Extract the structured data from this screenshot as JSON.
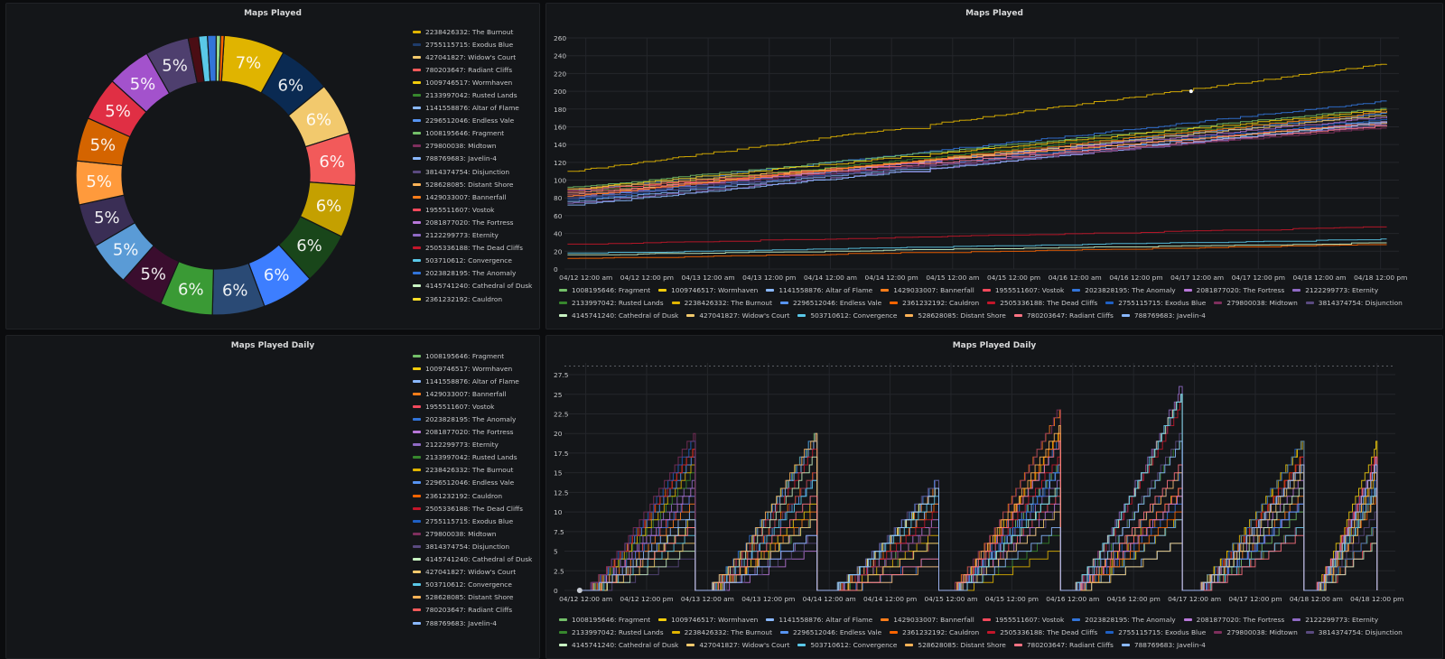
{
  "panels": {
    "maps_played_pie": {
      "title": "Maps Played"
    },
    "maps_played_line": {
      "title": "Maps Played"
    },
    "maps_played_daily_pie": {
      "title": "Maps Played Daily"
    },
    "maps_played_daily_line": {
      "title": "Maps Played Daily"
    }
  },
  "legend_pie1": [
    {
      "label": "2238426332: The Burnout",
      "color": "#e0b400"
    },
    {
      "label": "2755115715: Exodus Blue",
      "color": "#1f3c6b"
    },
    {
      "label": "427041827: Widow's Court",
      "color": "#f2c96d"
    },
    {
      "label": "780203647: Radiant Cliffs",
      "color": "#f25a5a"
    },
    {
      "label": "1009746517: Wormhaven",
      "color": "#f2cc0c"
    },
    {
      "label": "2133997042: Rusted Lands",
      "color": "#37872d"
    },
    {
      "label": "1141558876: Altar of Flame",
      "color": "#8ab8ff"
    },
    {
      "label": "2296512046: Endless Vale",
      "color": "#5794f2"
    },
    {
      "label": "1008195646: Fragment",
      "color": "#73bf69"
    },
    {
      "label": "279800038: Midtown",
      "color": "#7e2f5d"
    },
    {
      "label": "788769683: Javelin-4",
      "color": "#8ab8ff"
    },
    {
      "label": "3814374754: Disjunction",
      "color": "#5a4a80"
    },
    {
      "label": "528628085: Distant Shore",
      "color": "#ffb357"
    },
    {
      "label": "1429033007: Bannerfall",
      "color": "#ff7d1a"
    },
    {
      "label": "1955511607: Vostok",
      "color": "#f2495c"
    },
    {
      "label": "2081877020: The Fortress",
      "color": "#b877d9"
    },
    {
      "label": "2122299773: Eternity",
      "color": "#8f6ac4"
    },
    {
      "label": "2505336188: The Dead Cliffs",
      "color": "#c4162a"
    },
    {
      "label": "503710612: Convergence",
      "color": "#5ac8e8"
    },
    {
      "label": "2023828195: The Anomaly",
      "color": "#3274d9"
    },
    {
      "label": "4145741240: Cathedral of Dusk",
      "color": "#c8f2c2"
    },
    {
      "label": "2361232192: Cauldron",
      "color": "#fade2a"
    }
  ],
  "legend_pie2": [
    {
      "label": "1008195646: Fragment",
      "color": "#73bf69"
    },
    {
      "label": "1009746517: Wormhaven",
      "color": "#f2cc0c"
    },
    {
      "label": "1141558876: Altar of Flame",
      "color": "#8ab8ff"
    },
    {
      "label": "1429033007: Bannerfall",
      "color": "#ff7d1a"
    },
    {
      "label": "1955511607: Vostok",
      "color": "#f2495c"
    },
    {
      "label": "2023828195: The Anomaly",
      "color": "#3274d9"
    },
    {
      "label": "2081877020: The Fortress",
      "color": "#b877d9"
    },
    {
      "label": "2122299773: Eternity",
      "color": "#8f6ac4"
    },
    {
      "label": "2133997042: Rusted Lands",
      "color": "#37872d"
    },
    {
      "label": "2238426332: The Burnout",
      "color": "#e0b400"
    },
    {
      "label": "2296512046: Endless Vale",
      "color": "#5794f2"
    },
    {
      "label": "2361232192: Cauldron",
      "color": "#fa6400"
    },
    {
      "label": "2505336188: The Dead Cliffs",
      "color": "#c4162a"
    },
    {
      "label": "2755115715: Exodus Blue",
      "color": "#1f60c4"
    },
    {
      "label": "279800038: Midtown",
      "color": "#7e2f5d"
    },
    {
      "label": "3814374754: Disjunction",
      "color": "#5a4a80"
    },
    {
      "label": "4145741240: Cathedral of Dusk",
      "color": "#c8f2c2"
    },
    {
      "label": "427041827: Widow's Court",
      "color": "#f2c96d"
    },
    {
      "label": "503710612: Convergence",
      "color": "#5ac8e8"
    },
    {
      "label": "528628085: Distant Shore",
      "color": "#ffb357"
    },
    {
      "label": "780203647: Radiant Cliffs",
      "color": "#f25a5a"
    },
    {
      "label": "788769683: Javelin-4",
      "color": "#8ab8ff"
    }
  ],
  "legend_lines": [
    [
      {
        "label": "1008195646: Fragment",
        "color": "#73bf69"
      },
      {
        "label": "1009746517: Wormhaven",
        "color": "#f2cc0c"
      },
      {
        "label": "1141558876: Altar of Flame",
        "color": "#8ab8ff"
      },
      {
        "label": "1429033007: Bannerfall",
        "color": "#ff7d1a"
      },
      {
        "label": "1955511607: Vostok",
        "color": "#f2495c"
      },
      {
        "label": "2023828195: The Anomaly",
        "color": "#3274d9"
      },
      {
        "label": "2081877020: The Fortress",
        "color": "#b877d9"
      },
      {
        "label": "2122299773: Eternity",
        "color": "#8f6ac4"
      }
    ],
    [
      {
        "label": "2133997042: Rusted Lands",
        "color": "#37872d"
      },
      {
        "label": "2238426332: The Burnout",
        "color": "#e0b400"
      },
      {
        "label": "2296512046: Endless Vale",
        "color": "#5794f2"
      },
      {
        "label": "2361232192: Cauldron",
        "color": "#fa6400"
      },
      {
        "label": "2505336188: The Dead Cliffs",
        "color": "#c4162a"
      },
      {
        "label": "2755115715: Exodus Blue",
        "color": "#1f60c4"
      },
      {
        "label": "279800038: Midtown",
        "color": "#7e2f5d"
      },
      {
        "label": "3814374754: Disjunction",
        "color": "#5a4a80"
      }
    ],
    [
      {
        "label": "4145741240: Cathedral of Dusk",
        "color": "#c8f2c2"
      },
      {
        "label": "427041827: Widow's Court",
        "color": "#f2c96d"
      },
      {
        "label": "503710612: Convergence",
        "color": "#5ac8e8"
      },
      {
        "label": "528628085: Distant Shore",
        "color": "#ffb357"
      },
      {
        "label": "780203647: Radiant Cliffs",
        "color": "#ff7383"
      },
      {
        "label": "788769683: Javelin-4",
        "color": "#8ab8ff"
      }
    ]
  ],
  "chart_data": [
    {
      "type": "pie",
      "title": "Maps Played",
      "donut": true,
      "slices": [
        {
          "label": "2238426332: The Burnout",
          "value": 7,
          "color": "#e0b400"
        },
        {
          "label": "2755115715: Exodus Blue",
          "value": 6,
          "color": "#0a2a52"
        },
        {
          "label": "427041827: Widow's Court",
          "value": 6,
          "color": "#f2c96d"
        },
        {
          "label": "780203647: Radiant Cliffs",
          "value": 6,
          "color": "#f25a5a"
        },
        {
          "label": "1009746517: Wormhaven",
          "value": 6,
          "color": "#c4a000"
        },
        {
          "label": "2133997042: Rusted Lands",
          "value": 6,
          "color": "#19461a"
        },
        {
          "label": "1141558876: Altar of Flame",
          "value": 6,
          "color": "#3d7eff"
        },
        {
          "label": "2296512046: Endless Vale",
          "value": 6,
          "color": "#2a4a75"
        },
        {
          "label": "1008195646: Fragment",
          "value": 6,
          "color": "#3a9a35"
        },
        {
          "label": "279800038: Midtown",
          "value": 5,
          "color": "#3a0d2e"
        },
        {
          "label": "788769683: Javelin-4",
          "value": 5,
          "color": "#5a9bd6"
        },
        {
          "label": "3814374754: Disjunction",
          "value": 5,
          "color": "#3a2e55"
        },
        {
          "label": "528628085: Distant Shore",
          "value": 5,
          "color": "#ff9a3c"
        },
        {
          "label": "1429033007: Bannerfall",
          "value": 5,
          "color": "#d46400"
        },
        {
          "label": "1955511607: Vostok",
          "value": 5,
          "color": "#e02f44"
        },
        {
          "label": "2081877020: The Fortress",
          "value": 5,
          "color": "#a352cc"
        },
        {
          "label": "2122299773: Eternity",
          "value": 5,
          "color": "#4e3f6e"
        },
        {
          "label": "2505336188: The Dead Cliffs",
          "value": 1.2,
          "color": "#4a0d14"
        },
        {
          "label": "503710612: Convergence",
          "value": 1,
          "color": "#5ac8e8"
        },
        {
          "label": "2023828195: The Anomaly",
          "value": 1,
          "color": "#3274d9"
        },
        {
          "label": "4145741240: Cathedral of Dusk",
          "value": 0.5,
          "color": "#96d98d"
        },
        {
          "label": "2361232192: Cauldron",
          "value": 0.4,
          "color": "#fa6400"
        }
      ],
      "slice_labels": [
        "7%",
        "6%",
        "6%",
        "6%",
        "6%",
        "6%",
        "6%",
        "6%",
        "6%",
        "5%",
        "5%",
        "5%",
        "5%",
        "5%",
        "5%",
        "5%",
        "5%"
      ]
    },
    {
      "type": "line",
      "title": "Maps Played",
      "x_ticks": [
        "04/12 12:00 am",
        "04/12 12:00 pm",
        "04/13 12:00 am",
        "04/13 12:00 pm",
        "04/14 12:00 am",
        "04/14 12:00 pm",
        "04/15 12:00 am",
        "04/15 12:00 pm",
        "04/16 12:00 am",
        "04/16 12:00 pm",
        "04/17 12:00 am",
        "04/17 12:00 pm",
        "04/18 12:00 am",
        "04/18 12:00 pm"
      ],
      "y_ticks": [
        "0",
        "20",
        "40",
        "60",
        "80",
        "100",
        "120",
        "140",
        "160",
        "180",
        "200",
        "220",
        "240",
        "260"
      ],
      "xlim": [
        -0.35,
        13.3
      ],
      "ylim": [
        0,
        260
      ],
      "series": [
        {
          "name": "2238426332: The Burnout",
          "color": "#e0b400",
          "start": 110,
          "end": 232
        },
        {
          "name": "2023828195: The Anomaly",
          "color": "#3274d9",
          "start": 88,
          "end": 190
        },
        {
          "name": "1008195646: Fragment",
          "color": "#73bf69",
          "start": 92,
          "end": 182
        },
        {
          "name": "1009746517: Wormhaven",
          "color": "#f2cc0c",
          "start": 90,
          "end": 180
        },
        {
          "name": "2133997042: Rusted Lands",
          "color": "#37872d",
          "start": 86,
          "end": 178
        },
        {
          "name": "2296512046: Endless Vale",
          "color": "#5794f2",
          "start": 80,
          "end": 176
        },
        {
          "name": "427041827: Widow's Court",
          "color": "#f2c96d",
          "start": 84,
          "end": 174
        },
        {
          "name": "2081877020: The Fortress",
          "color": "#b877d9",
          "start": 82,
          "end": 172
        },
        {
          "name": "2755115715: Exodus Blue",
          "color": "#1f60c4",
          "start": 78,
          "end": 170
        },
        {
          "name": "1141558876: Altar of Flame",
          "color": "#8ab8ff",
          "start": 76,
          "end": 168
        },
        {
          "name": "1955511607: Vostok",
          "color": "#f2495c",
          "start": 88,
          "end": 166
        },
        {
          "name": "528628085: Distant Shore",
          "color": "#ffb357",
          "start": 90,
          "end": 165
        },
        {
          "name": "2122299773: Eternity",
          "color": "#8f6ac4",
          "start": 74,
          "end": 164
        },
        {
          "name": "3814374754: Disjunction",
          "color": "#5a4a80",
          "start": 80,
          "end": 163
        },
        {
          "name": "780203647: Radiant Cliffs",
          "color": "#ff7383",
          "start": 86,
          "end": 162
        },
        {
          "name": "788769683: Javelin-4",
          "color": "#8ab8ff",
          "start": 72,
          "end": 166
        },
        {
          "name": "279800038: Midtown",
          "color": "#7e2f5d",
          "start": 84,
          "end": 160
        },
        {
          "name": "1429033007: Bannerfall",
          "color": "#ff7d1a",
          "start": 82,
          "end": 178
        },
        {
          "name": "2505336188: The Dead Cliffs",
          "color": "#c4162a",
          "start": 28,
          "end": 48
        },
        {
          "name": "503710612: Convergence",
          "color": "#5ac8e8",
          "start": 18,
          "end": 34
        },
        {
          "name": "2361232192: Cauldron",
          "color": "#fa6400",
          "start": 12,
          "end": 28
        },
        {
          "name": "4145741240: Cathedral of Dusk",
          "color": "#c8f2c2",
          "start": 16,
          "end": 30
        }
      ]
    },
    {
      "type": "pie",
      "title": "Maps Played Daily",
      "slices": []
    },
    {
      "type": "line",
      "title": "Maps Played Daily",
      "x_ticks": [
        "04/12 12:00 am",
        "04/12 12:00 pm",
        "04/13 12:00 am",
        "04/13 12:00 pm",
        "04/14 12:00 am",
        "04/14 12:00 pm",
        "04/15 12:00 am",
        "04/15 12:00 pm",
        "04/16 12:00 am",
        "04/16 12:00 pm",
        "04/17 12:00 am",
        "04/17 12:00 pm",
        "04/18 12:00 am",
        "04/18 12:00 pm"
      ],
      "y_ticks": [
        "0",
        "2.5",
        "5",
        "7.5",
        "10",
        "12.5",
        "15",
        "17.5",
        "20",
        "22.5",
        "25",
        "27.5"
      ],
      "xlim": [
        -0.35,
        13.3
      ],
      "ylim": [
        0,
        29
      ],
      "day_resets": [
        -0.1,
        1.9,
        3.9,
        5.9,
        7.9,
        9.9,
        11.9
      ],
      "day_ends": [
        1.8,
        3.8,
        5.8,
        7.8,
        9.8,
        11.8,
        13.0
      ],
      "daily_max": [
        21,
        20,
        14,
        24,
        26,
        20,
        19
      ],
      "series": [
        {
          "name": "1008195646: Fragment",
          "color": "#73bf69"
        },
        {
          "name": "1009746517: Wormhaven",
          "color": "#f2cc0c"
        },
        {
          "name": "1141558876: Altar of Flame",
          "color": "#8ab8ff"
        },
        {
          "name": "1429033007: Bannerfall",
          "color": "#ff7d1a"
        },
        {
          "name": "1955511607: Vostok",
          "color": "#f2495c"
        },
        {
          "name": "2023828195: The Anomaly",
          "color": "#3274d9"
        },
        {
          "name": "2081877020: The Fortress",
          "color": "#b877d9"
        },
        {
          "name": "2122299773: Eternity",
          "color": "#8f6ac4"
        },
        {
          "name": "2133997042: Rusted Lands",
          "color": "#37872d"
        },
        {
          "name": "2238426332: The Burnout",
          "color": "#e0b400"
        },
        {
          "name": "2296512046: Endless Vale",
          "color": "#5794f2"
        },
        {
          "name": "2361232192: Cauldron",
          "color": "#fa6400"
        },
        {
          "name": "2505336188: The Dead Cliffs",
          "color": "#c4162a"
        },
        {
          "name": "2755115715: Exodus Blue",
          "color": "#1f60c4"
        },
        {
          "name": "279800038: Midtown",
          "color": "#7e2f5d"
        },
        {
          "name": "3814374754: Disjunction",
          "color": "#5a4a80"
        },
        {
          "name": "4145741240: Cathedral of Dusk",
          "color": "#c8f2c2"
        },
        {
          "name": "427041827: Widow's Court",
          "color": "#f2c96d"
        },
        {
          "name": "503710612: Convergence",
          "color": "#5ac8e8"
        },
        {
          "name": "528628085: Distant Shore",
          "color": "#ffb357"
        },
        {
          "name": "780203647: Radiant Cliffs",
          "color": "#ff7383"
        },
        {
          "name": "788769683: Javelin-4",
          "color": "#8ab8ff"
        }
      ]
    }
  ]
}
